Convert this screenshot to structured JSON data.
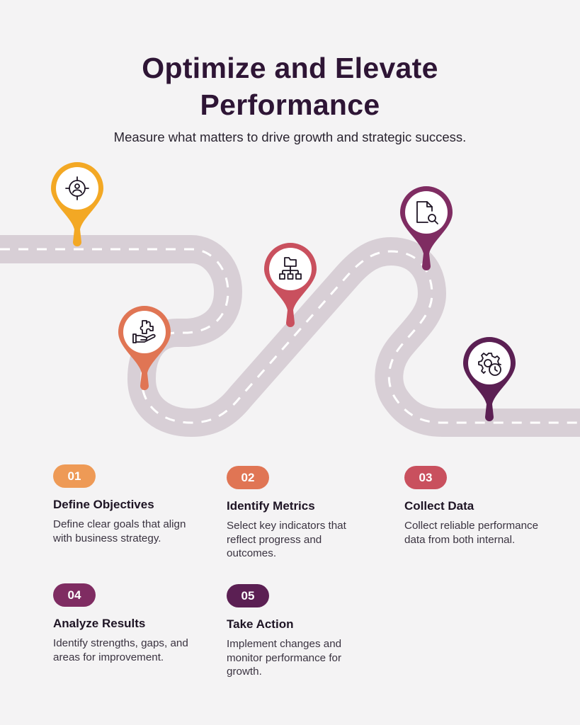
{
  "header": {
    "title_line1": "Optimize and Elevate",
    "title_line2": "Performance",
    "subtitle": "Measure what matters to drive growth and strategic success."
  },
  "markers": [
    {
      "icon": "target-user-icon",
      "color": "#f3a824"
    },
    {
      "icon": "hand-puzzle-icon",
      "color": "#e07554"
    },
    {
      "icon": "hierarchy-icon",
      "color": "#c9505e"
    },
    {
      "icon": "document-search-icon",
      "color": "#7f2c62"
    },
    {
      "icon": "gear-clock-icon",
      "color": "#5b1f53"
    }
  ],
  "steps": [
    {
      "number": "01",
      "title": "Define Objectives",
      "description": "Define clear goals that align with business strategy.",
      "color": "#ee9a56"
    },
    {
      "number": "02",
      "title": "Identify Metrics",
      "description": "Select key indicators that reflect progress and outcomes.",
      "color": "#e07554"
    },
    {
      "number": "03",
      "title": "Collect Data",
      "description": "Collect reliable performance data from both internal.",
      "color": "#c9505e"
    },
    {
      "number": "04",
      "title": "Analyze Results",
      "description": "Identify strengths, gaps, and areas for improvement.",
      "color": "#7f2c62"
    },
    {
      "number": "05",
      "title": "Take Action",
      "description": "Implement changes and monitor performance for growth.",
      "color": "#5b1f53"
    }
  ]
}
